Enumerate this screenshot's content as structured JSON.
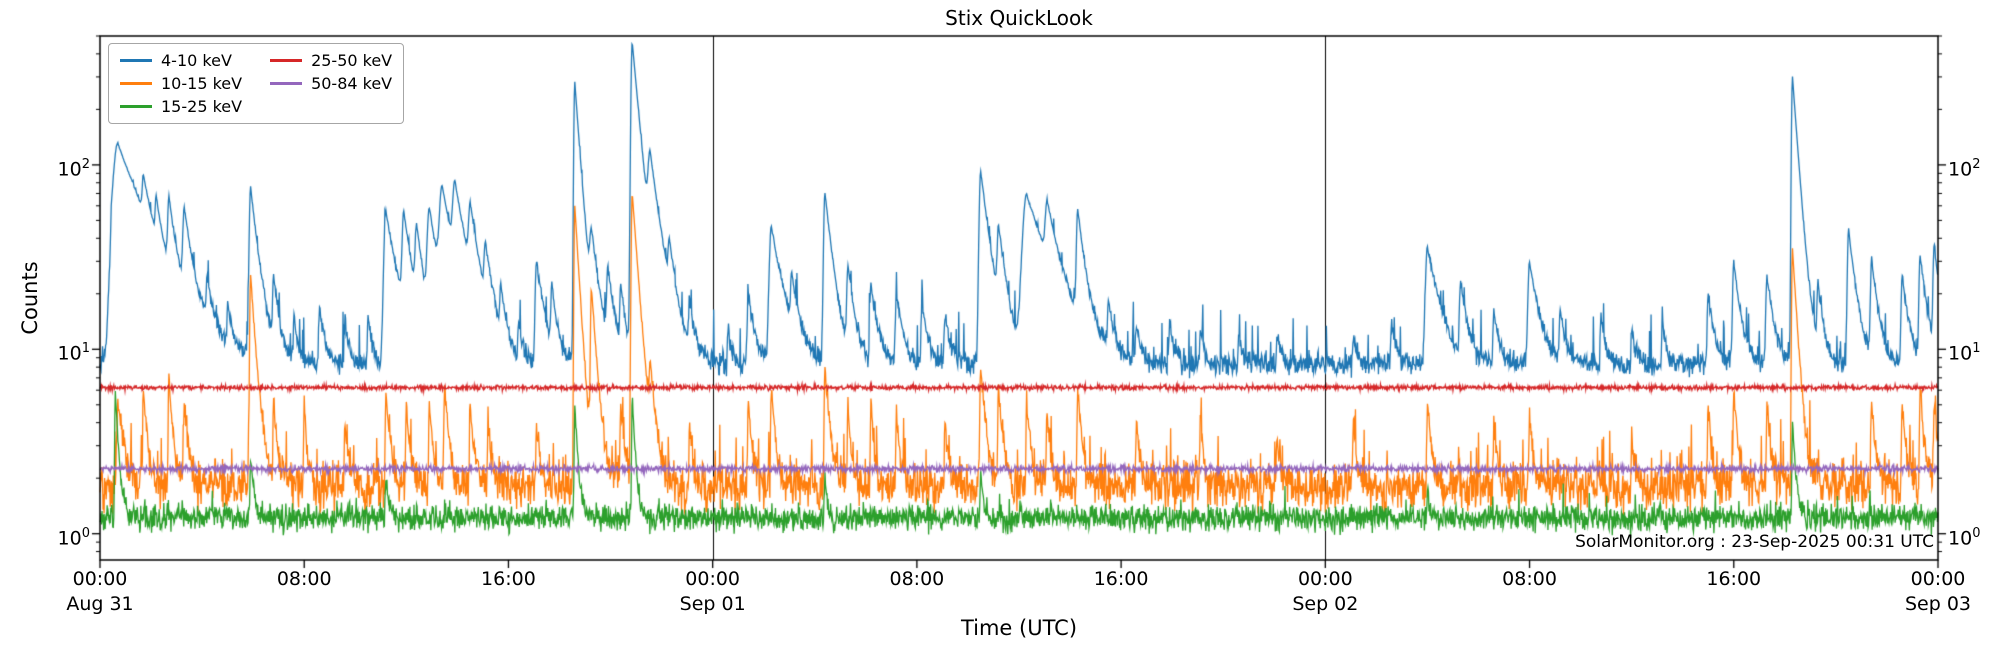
{
  "chart_data": {
    "type": "line",
    "title": "Stix QuickLook",
    "xlabel": "Time (UTC)",
    "ylabel": "Counts",
    "yscale": "log",
    "xlim": [
      0,
      72
    ],
    "ylim": [
      0.72,
      500
    ],
    "grid": false,
    "legend_position": "upper-left",
    "annotation": "SolarMonitor.org : 23-Sep-2025 00:31 UTC",
    "day_lines_hours": [
      24,
      48
    ],
    "x_ticks": [
      {
        "hours": 0,
        "label": "00:00",
        "date": "Aug 31"
      },
      {
        "hours": 8,
        "label": "08:00"
      },
      {
        "hours": 16,
        "label": "16:00"
      },
      {
        "hours": 24,
        "label": "00:00",
        "date": "Sep 01"
      },
      {
        "hours": 32,
        "label": "08:00"
      },
      {
        "hours": 40,
        "label": "16:00"
      },
      {
        "hours": 48,
        "label": "00:00",
        "date": "Sep 02"
      },
      {
        "hours": 56,
        "label": "08:00"
      },
      {
        "hours": 64,
        "label": "16:00"
      },
      {
        "hours": 72,
        "label": "00:00",
        "date": "Sep 03"
      }
    ],
    "y_ticks": [
      {
        "value": 1,
        "base": "10",
        "exponent": "0"
      },
      {
        "value": 10,
        "base": "10",
        "exponent": "1"
      },
      {
        "value": 100,
        "base": "10",
        "exponent": "2"
      }
    ],
    "series": [
      {
        "name": "4-10 keV",
        "color": "#1f77b4",
        "baseline": 8.3,
        "noise_sigma": 0.07,
        "spike_prob": 0.04,
        "spike_amp": 0.9,
        "flares": [
          [
            0.45,
            22,
            0.1
          ],
          [
            0.7,
            130,
            1.1
          ],
          [
            1.7,
            40,
            0.25
          ],
          [
            2.2,
            34,
            0.2
          ],
          [
            2.7,
            46,
            0.25
          ],
          [
            3.3,
            44,
            0.3
          ],
          [
            4.2,
            18,
            0.2
          ],
          [
            5.0,
            16,
            0.15
          ],
          [
            5.9,
            75,
            0.3
          ],
          [
            6.8,
            22,
            0.2
          ],
          [
            7.6,
            15,
            0.15
          ],
          [
            8.6,
            17,
            0.2
          ],
          [
            9.6,
            14,
            0.15
          ],
          [
            10.5,
            15,
            0.15
          ],
          [
            11.2,
            56,
            0.45
          ],
          [
            11.9,
            46,
            0.35
          ],
          [
            12.4,
            36,
            0.3
          ],
          [
            12.9,
            50,
            0.45
          ],
          [
            13.4,
            62,
            0.55
          ],
          [
            13.9,
            56,
            0.45
          ],
          [
            14.5,
            42,
            0.35
          ],
          [
            15.1,
            26,
            0.3
          ],
          [
            15.7,
            18,
            0.2
          ],
          [
            16.4,
            13,
            0.15
          ],
          [
            17.1,
            30,
            0.3
          ],
          [
            17.7,
            20,
            0.2
          ],
          [
            18.6,
            280,
            0.22
          ],
          [
            19.25,
            32,
            0.35
          ],
          [
            19.9,
            24,
            0.25
          ],
          [
            20.4,
            20,
            0.2
          ],
          [
            20.85,
            460,
            0.28
          ],
          [
            21.55,
            82,
            0.45
          ],
          [
            22.3,
            24,
            0.25
          ],
          [
            23.1,
            15,
            0.2
          ],
          [
            24.6,
            13,
            0.15
          ],
          [
            25.4,
            20,
            0.25
          ],
          [
            26.3,
            46,
            0.45
          ],
          [
            27.1,
            20,
            0.25
          ],
          [
            28.4,
            70,
            0.3
          ],
          [
            29.3,
            26,
            0.25
          ],
          [
            30.2,
            22,
            0.25
          ],
          [
            31.2,
            20,
            0.25
          ],
          [
            32.2,
            18,
            0.2
          ],
          [
            33.1,
            16,
            0.2
          ],
          [
            34.5,
            92,
            0.35
          ],
          [
            35.2,
            36,
            0.3
          ],
          [
            36.3,
            68,
            0.9
          ],
          [
            37.1,
            40,
            0.4
          ],
          [
            38.3,
            50,
            0.28
          ],
          [
            39.5,
            16,
            0.2
          ],
          [
            40.6,
            13,
            0.15
          ],
          [
            41.9,
            14,
            0.18
          ],
          [
            43.1,
            13,
            0.15
          ],
          [
            44.6,
            12,
            0.15
          ],
          [
            46.1,
            12,
            0.15
          ],
          [
            49.1,
            12,
            0.15
          ],
          [
            50.6,
            14,
            0.18
          ],
          [
            52.0,
            36,
            0.45
          ],
          [
            53.3,
            22,
            0.25
          ],
          [
            54.6,
            16,
            0.2
          ],
          [
            56.0,
            30,
            0.35
          ],
          [
            57.2,
            16,
            0.2
          ],
          [
            58.8,
            15,
            0.18
          ],
          [
            60.0,
            13,
            0.15
          ],
          [
            61.2,
            14,
            0.15
          ],
          [
            63.0,
            20,
            0.22
          ],
          [
            64.0,
            30,
            0.25
          ],
          [
            65.3,
            25,
            0.25
          ],
          [
            66.3,
            300,
            0.22
          ],
          [
            67.3,
            20,
            0.22
          ],
          [
            68.5,
            45,
            0.28
          ],
          [
            69.4,
            30,
            0.25
          ],
          [
            70.6,
            25,
            0.25
          ],
          [
            71.3,
            32,
            0.25
          ],
          [
            71.85,
            35,
            0.25
          ]
        ]
      },
      {
        "name": "10-15 keV",
        "color": "#ff7f0e",
        "baseline": 1.8,
        "noise_sigma": 0.14,
        "spike_prob": 0.06,
        "spike_amp": 0.9,
        "flares": [
          [
            0.7,
            5,
            0.25
          ],
          [
            1.7,
            6,
            0.15
          ],
          [
            2.7,
            7,
            0.15
          ],
          [
            3.3,
            5,
            0.15
          ],
          [
            5.9,
            25,
            0.2
          ],
          [
            6.8,
            5,
            0.15
          ],
          [
            8.0,
            5,
            0.12
          ],
          [
            9.6,
            4,
            0.12
          ],
          [
            11.2,
            6,
            0.15
          ],
          [
            12.0,
            5,
            0.15
          ],
          [
            12.9,
            5,
            0.15
          ],
          [
            13.5,
            6.5,
            0.15
          ],
          [
            14.5,
            5,
            0.15
          ],
          [
            15.2,
            4,
            0.12
          ],
          [
            17.1,
            4,
            0.12
          ],
          [
            18.6,
            60,
            0.18
          ],
          [
            19.25,
            20,
            0.2
          ],
          [
            20.4,
            5,
            0.15
          ],
          [
            20.85,
            70,
            0.22
          ],
          [
            21.55,
            6,
            0.2
          ],
          [
            23.1,
            4,
            0.12
          ],
          [
            25.4,
            5,
            0.15
          ],
          [
            26.3,
            6,
            0.15
          ],
          [
            28.4,
            8,
            0.18
          ],
          [
            29.3,
            5,
            0.12
          ],
          [
            30.2,
            5,
            0.12
          ],
          [
            31.2,
            4.5,
            0.12
          ],
          [
            33.1,
            4,
            0.12
          ],
          [
            34.5,
            8,
            0.18
          ],
          [
            35.2,
            6,
            0.15
          ],
          [
            36.3,
            5,
            0.15
          ],
          [
            37.1,
            4.5,
            0.15
          ],
          [
            38.3,
            6,
            0.15
          ],
          [
            40.6,
            4,
            0.12
          ],
          [
            43.1,
            4,
            0.12
          ],
          [
            46.1,
            3.5,
            0.12
          ],
          [
            49.1,
            4,
            0.12
          ],
          [
            52.0,
            5,
            0.15
          ],
          [
            54.6,
            4,
            0.12
          ],
          [
            56.0,
            4.5,
            0.12
          ],
          [
            60.0,
            3.5,
            0.12
          ],
          [
            63.0,
            5,
            0.12
          ],
          [
            64.0,
            6,
            0.15
          ],
          [
            65.3,
            5,
            0.15
          ],
          [
            66.3,
            35,
            0.18
          ],
          [
            69.4,
            5,
            0.15
          ],
          [
            70.6,
            5,
            0.15
          ],
          [
            71.3,
            6,
            0.15
          ],
          [
            71.85,
            5,
            0.15
          ]
        ]
      },
      {
        "name": "15-25 keV",
        "color": "#2ca02c",
        "baseline": 1.22,
        "noise_sigma": 0.08,
        "spike_prob": 0.02,
        "spike_amp": 0.35,
        "flares": [
          [
            0.6,
            6,
            0.12
          ],
          [
            5.9,
            2.6,
            0.12
          ],
          [
            11.2,
            2.0,
            0.1
          ],
          [
            18.6,
            5,
            0.12
          ],
          [
            20.85,
            5.5,
            0.12
          ],
          [
            28.4,
            2.0,
            0.1
          ],
          [
            34.5,
            2.2,
            0.1
          ],
          [
            52.0,
            1.8,
            0.1
          ],
          [
            66.3,
            4,
            0.12
          ]
        ]
      },
      {
        "name": "25-50 keV",
        "color": "#d62728",
        "baseline": 6.2,
        "noise_sigma": 0.015,
        "spike_prob": 0,
        "spike_amp": 0,
        "flares": []
      },
      {
        "name": "50-84 keV",
        "color": "#9467bd",
        "baseline": 2.25,
        "noise_sigma": 0.02,
        "spike_prob": 0,
        "spike_amp": 0,
        "flares": []
      }
    ]
  }
}
